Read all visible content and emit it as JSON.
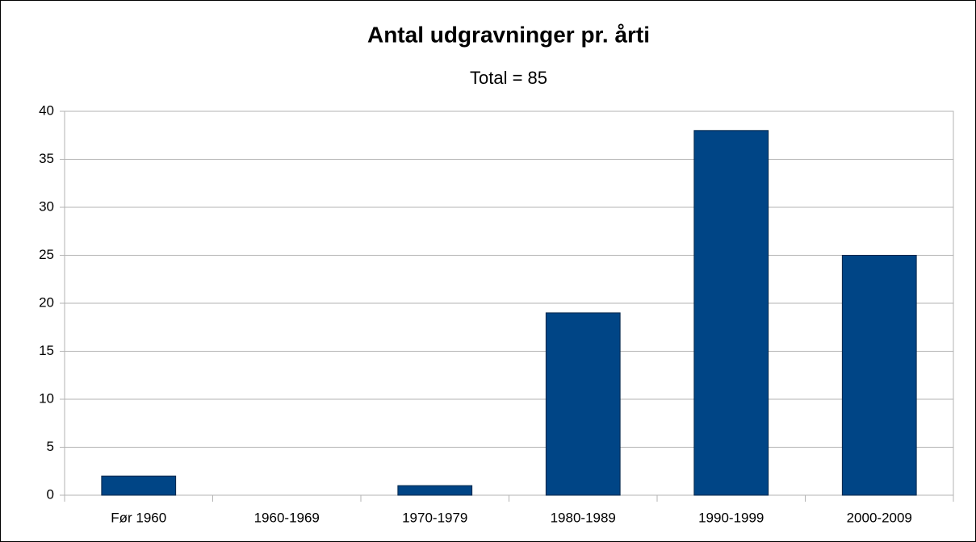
{
  "chart_data": {
    "type": "bar",
    "title": "Antal udgravninger pr. årti",
    "subtitle": "Total = 85",
    "categories": [
      "Før 1960",
      "1960-1969",
      "1970-1979",
      "1980-1989",
      "1990-1999",
      "2000-2009"
    ],
    "values": [
      2,
      0,
      1,
      19,
      38,
      25
    ],
    "color": "#004586",
    "ylim": [
      0,
      40
    ],
    "yticks": [
      0,
      5,
      10,
      15,
      20,
      25,
      30,
      35,
      40
    ],
    "grid": true
  }
}
